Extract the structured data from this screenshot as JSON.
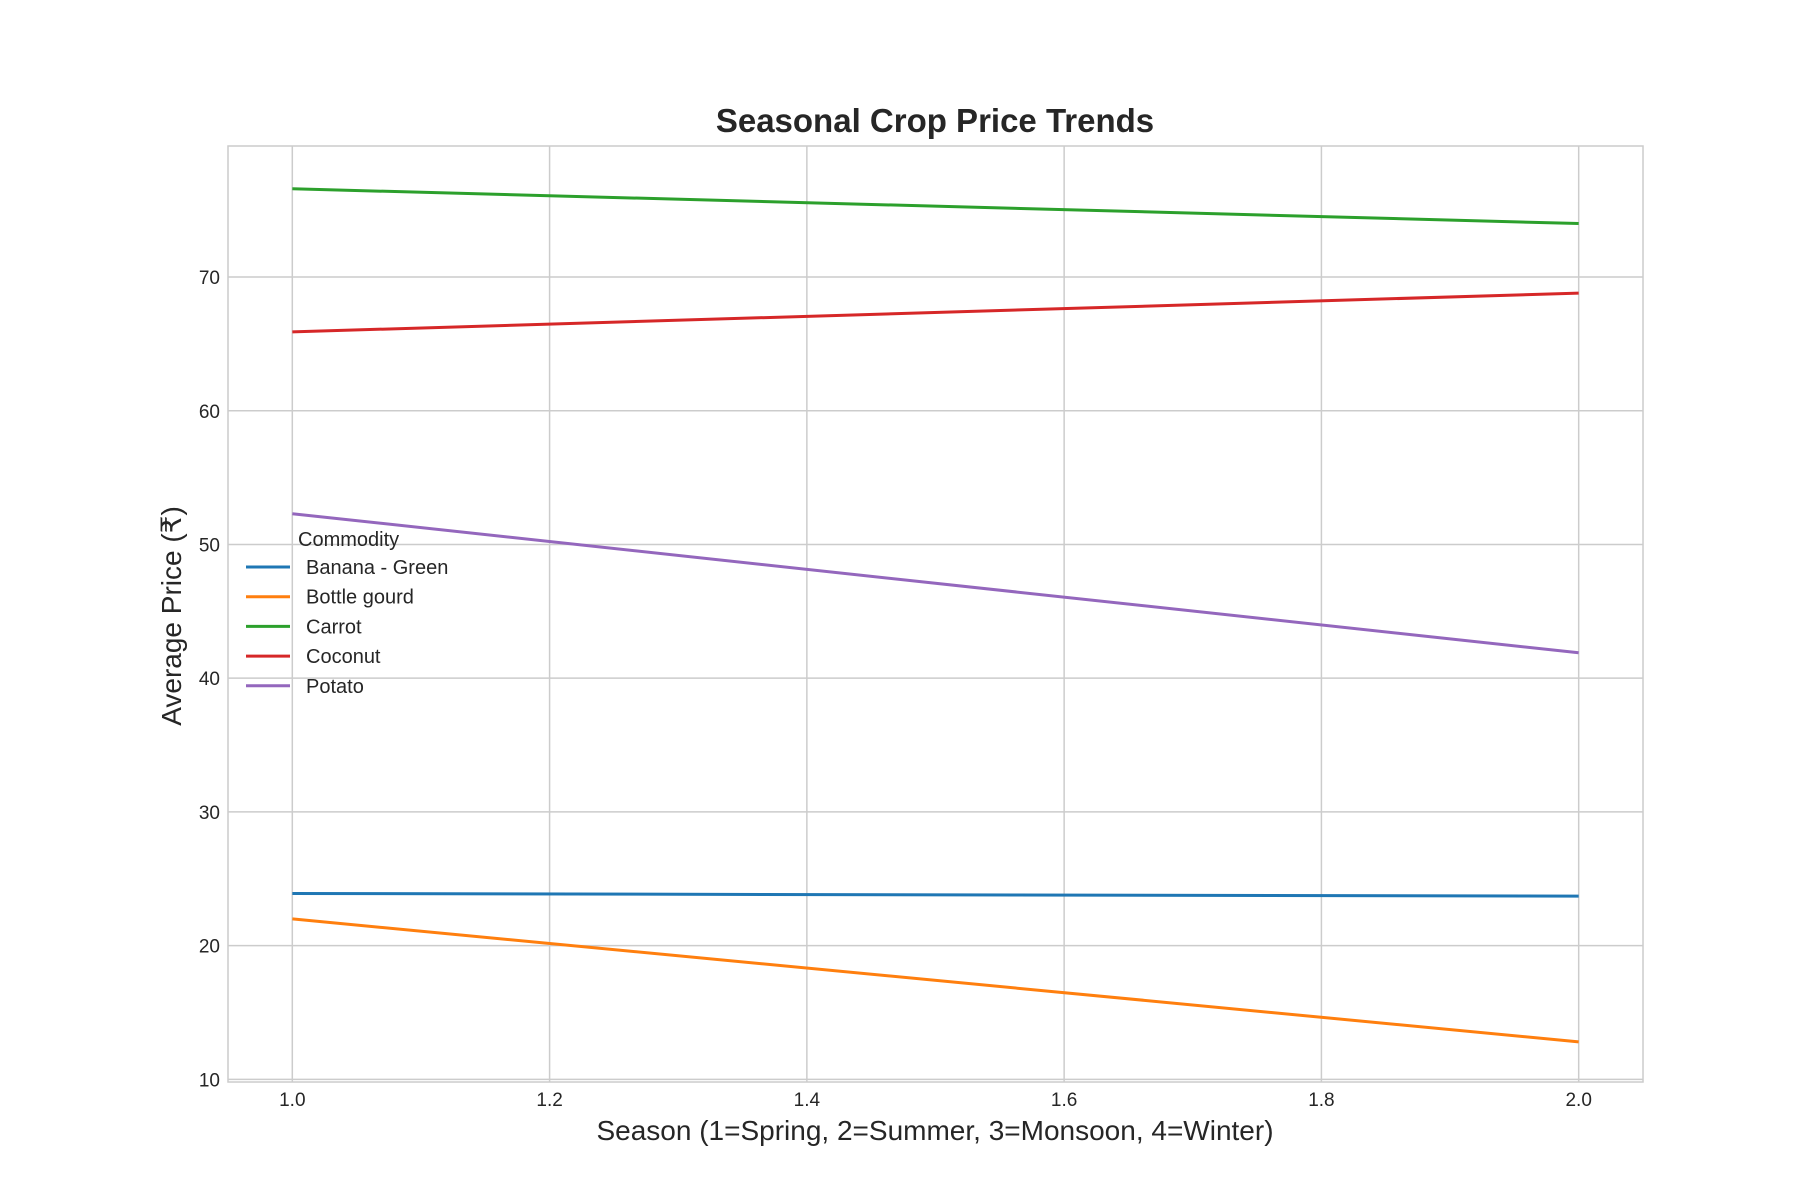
{
  "chart_data": {
    "type": "line",
    "title": "Seasonal Crop Price Trends",
    "xlabel": "Season (1=Spring, 2=Summer, 3=Monsoon, 4=Winter)",
    "ylabel": "Average Price (₹)",
    "xlim": [
      0.95,
      2.05
    ],
    "ylim": [
      9.8,
      79.8
    ],
    "xticks": [
      "1.0",
      "1.2",
      "1.4",
      "1.6",
      "1.8",
      "2.0"
    ],
    "yticks": [
      "10",
      "20",
      "30",
      "40",
      "50",
      "60",
      "70"
    ],
    "grid": true,
    "legend": {
      "title": "Commodity",
      "placement": "center-left"
    },
    "x": [
      1.0,
      2.0
    ],
    "series": [
      {
        "name": "Banana - Green",
        "color": "#1f77b4",
        "values": [
          23.9,
          23.7
        ]
      },
      {
        "name": "Bottle gourd",
        "color": "#ff7f0e",
        "values": [
          22.0,
          12.8
        ]
      },
      {
        "name": "Carrot",
        "color": "#2ca02c",
        "values": [
          76.6,
          74.0
        ]
      },
      {
        "name": "Coconut",
        "color": "#d62728",
        "values": [
          65.9,
          68.8
        ]
      },
      {
        "name": "Potato",
        "color": "#9467bd",
        "values": [
          52.3,
          41.9
        ]
      }
    ]
  }
}
